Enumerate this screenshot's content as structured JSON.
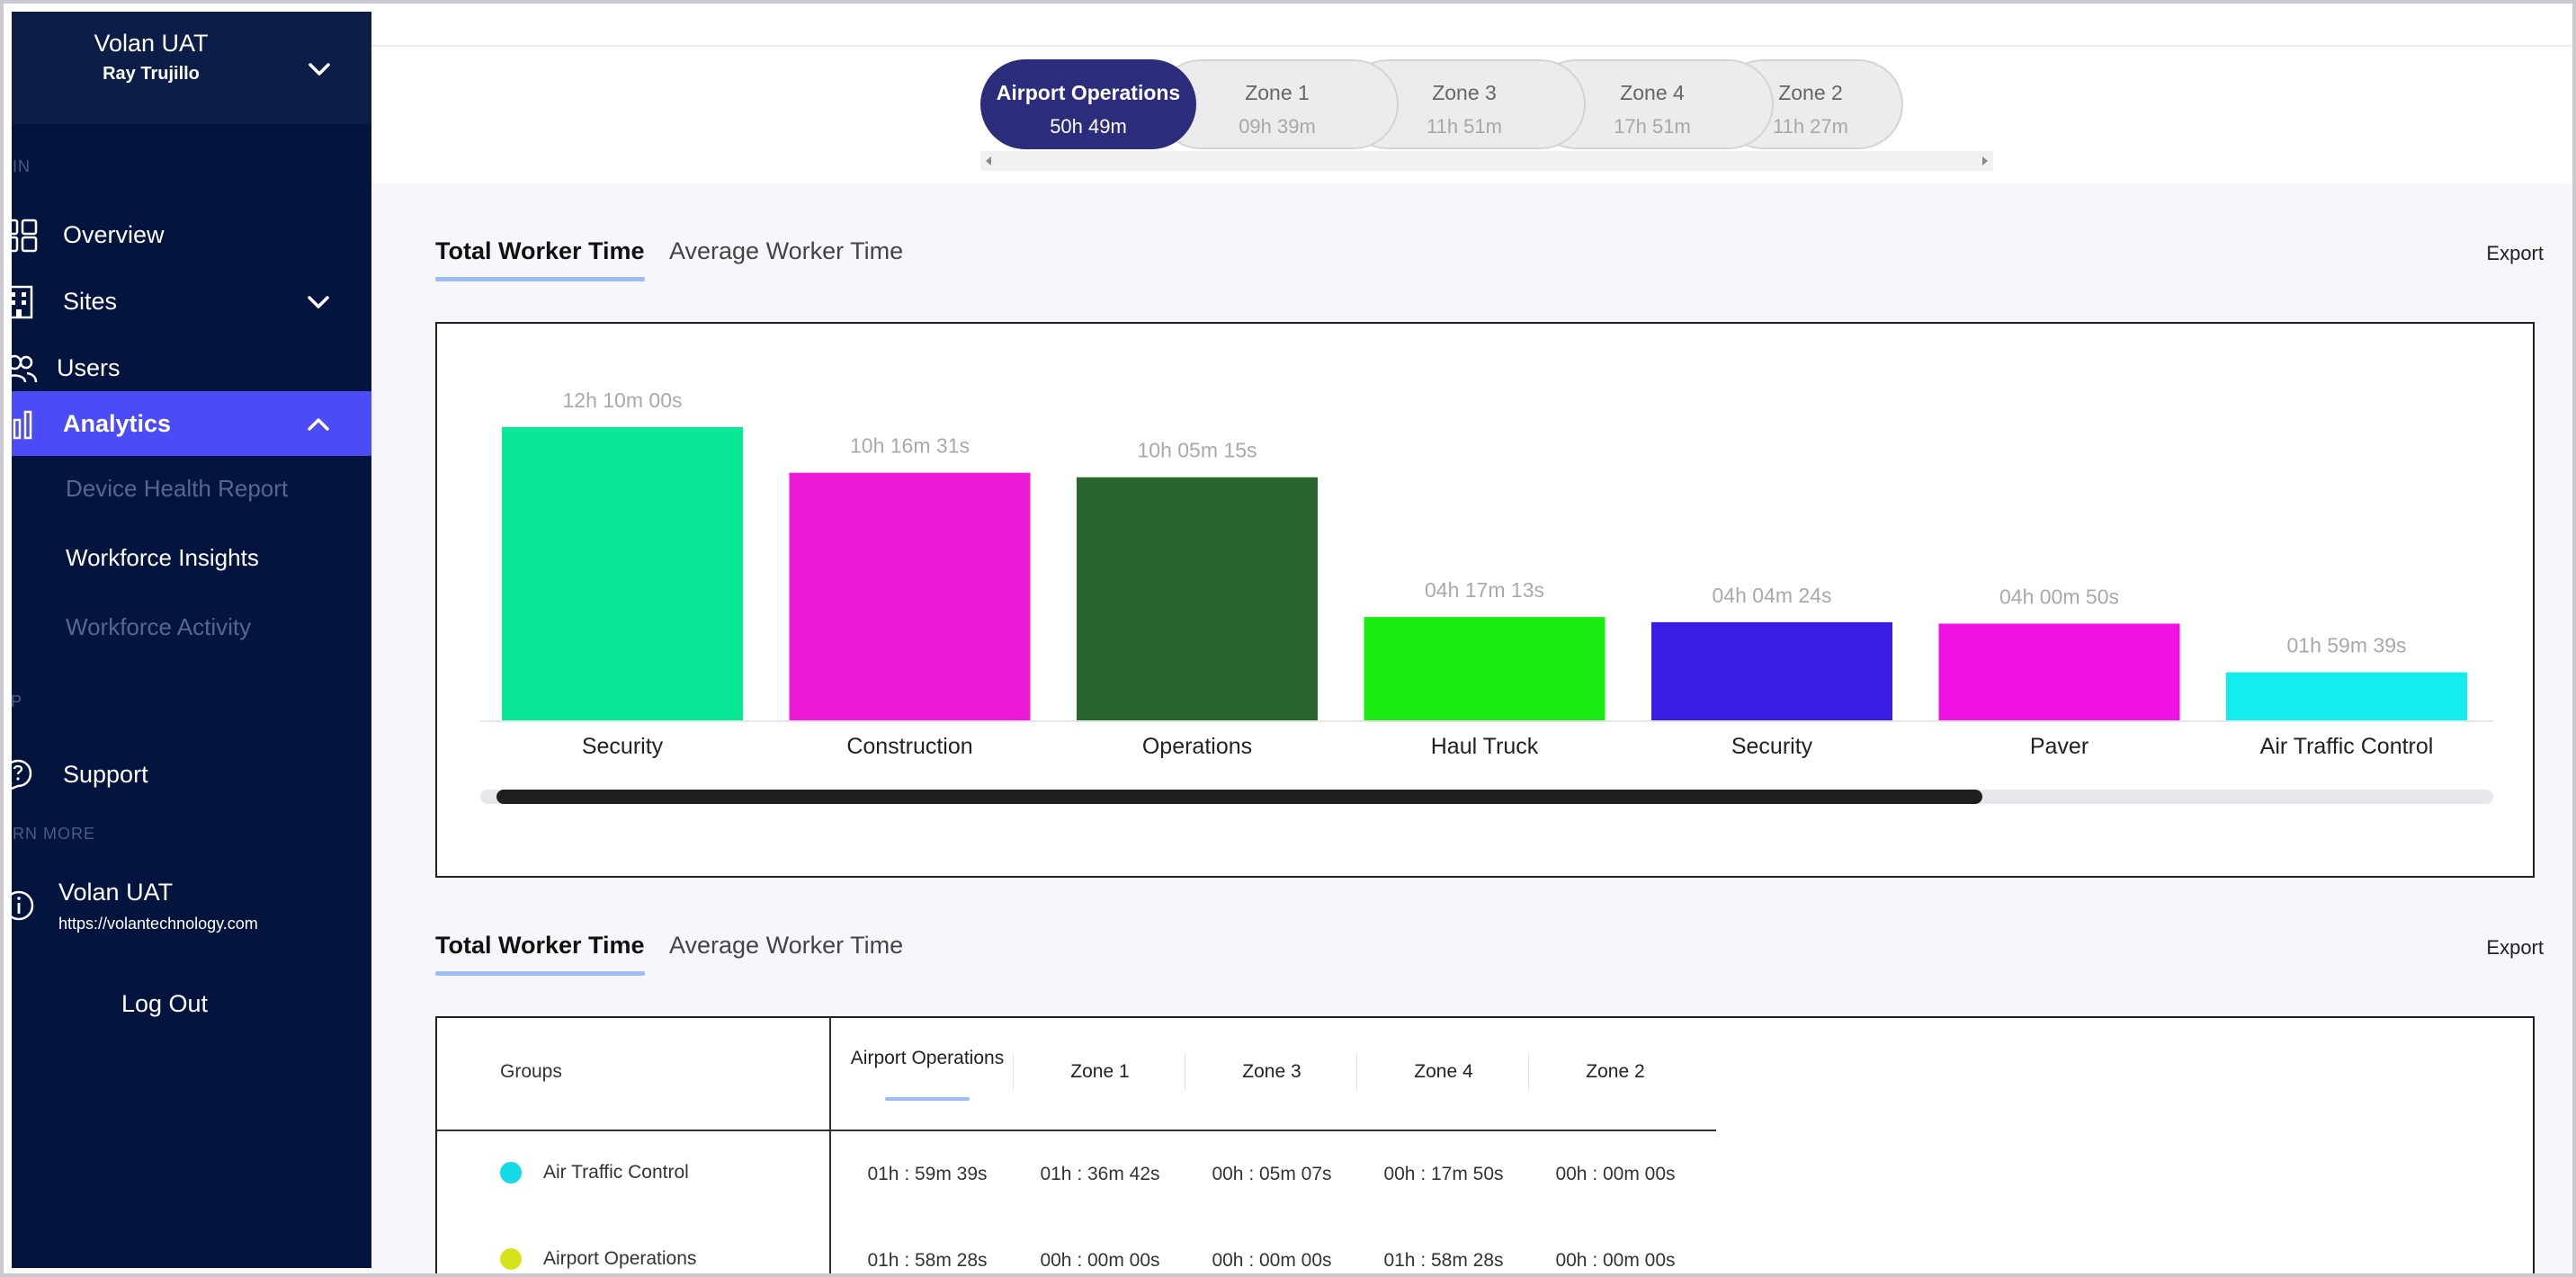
{
  "sidebar": {
    "org_name": "Volan UAT",
    "user_name": "Ray Trujillo",
    "sections": {
      "main": "AIN",
      "help": "LP",
      "learn_more": "ARN MORE"
    },
    "items": [
      {
        "label": "Overview",
        "icon": "grid-icon"
      },
      {
        "label": "Sites",
        "icon": "building-icon"
      },
      {
        "label": "Users",
        "icon": "users-icon"
      },
      {
        "label": "Analytics",
        "icon": "bar-chart-icon"
      }
    ],
    "analytics_sub": [
      {
        "label": "Device Health Report"
      },
      {
        "label": "Workforce Insights"
      },
      {
        "label": "Workforce Activity"
      }
    ],
    "support_label": "Support",
    "info_title": "Volan UAT",
    "info_url": "https://volantechnology.com",
    "logout_label": "Log Out",
    "colors": {
      "background": "#03153f",
      "active": "#4b4cf5"
    }
  },
  "zones": [
    {
      "name": "Airport Operations",
      "time": "50h 49m",
      "active": true
    },
    {
      "name": "Zone 1",
      "time": "09h 39m"
    },
    {
      "name": "Zone 3",
      "time": "11h 51m"
    },
    {
      "name": "Zone 4",
      "time": "17h 51m"
    },
    {
      "name": "Zone 2",
      "time": "11h 27m"
    }
  ],
  "chart_section": {
    "tab_total": "Total Worker Time",
    "tab_average": "Average Worker Time",
    "export_label": "Export"
  },
  "chart_data": {
    "type": "bar",
    "categories": [
      "Security",
      "Construction",
      "Operations",
      "Haul Truck",
      "Security",
      "Paver",
      "Air Traffic Control"
    ],
    "labels": [
      "12h 10m 00s",
      "10h 16m 31s",
      "10h 05m 15s",
      "04h 17m 13s",
      "04h 04m 24s",
      "04h 00m 50s",
      "01h 59m 39s"
    ],
    "values": [
      43800,
      36991,
      36315,
      15433,
      14664,
      14450,
      7179
    ],
    "colors": [
      "#08e896",
      "#ef1ad7",
      "#29652f",
      "#1aeb13",
      "#3a1ee5",
      "#ef12e3",
      "#14eded"
    ],
    "ylim": [
      0,
      43800
    ],
    "grid": false
  },
  "table_section": {
    "tab_total": "Total Worker Time",
    "tab_average": "Average Worker Time",
    "export_label": "Export",
    "header_groups": "Groups",
    "columns": [
      "Airport Operations",
      "Zone 1",
      "Zone 3",
      "Zone 4",
      "Zone 2"
    ],
    "rows": [
      {
        "group": "Air Traffic Control",
        "color": "#14d9e6",
        "values": [
          "01h : 59m 39s",
          "01h : 36m 42s",
          "00h : 05m 07s",
          "00h : 17m 50s",
          "00h : 00m 00s"
        ]
      },
      {
        "group": "Airport Operations",
        "color": "#d7e31a",
        "values": [
          "01h : 58m 28s",
          "00h : 00m 00s",
          "00h : 00m 00s",
          "01h : 58m 28s",
          "00h : 00m 00s"
        ]
      }
    ]
  }
}
